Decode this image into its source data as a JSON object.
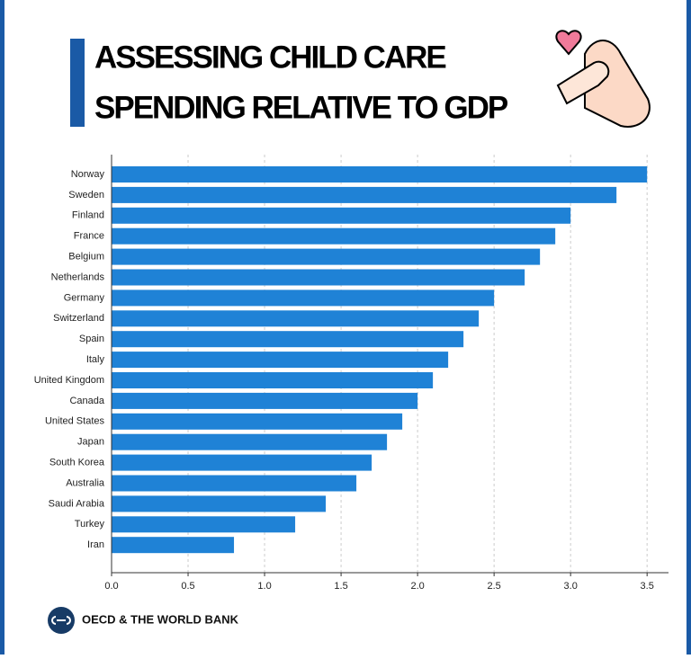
{
  "header": {
    "title_lines": [
      "ASSESSING CHILD CARE",
      "SPENDING RELATIVE TO GDP"
    ]
  },
  "chart_data": {
    "type": "barh",
    "categories": [
      "Norway",
      "Sweden",
      "Finland",
      "France",
      "Belgium",
      "Netherlands",
      "Germany",
      "Switzerland",
      "Spain",
      "Italy",
      "United Kingdom",
      "Canada",
      "United States",
      "Japan",
      "South Korea",
      "Australia",
      "Saudi Arabia",
      "Turkey",
      "Iran"
    ],
    "values": [
      3.5,
      3.3,
      3.0,
      2.9,
      2.8,
      2.7,
      2.5,
      2.4,
      2.3,
      2.2,
      2.1,
      2.0,
      1.9,
      1.8,
      1.7,
      1.6,
      1.4,
      1.2,
      0.8
    ],
    "color": "#1f82d6",
    "xlim": [
      0,
      3.64
    ],
    "xticks": [
      {
        "value": 0,
        "label": "0.0"
      },
      0.5,
      {
        "value": 1,
        "label": "1.0"
      },
      1.5,
      {
        "value": 2,
        "label": "2.0"
      },
      2.5,
      {
        "value": 3,
        "label": "3.0"
      },
      3.5
    ],
    "grid": true
  },
  "footer": {
    "source": "OECD & THE WORLD BANK"
  }
}
